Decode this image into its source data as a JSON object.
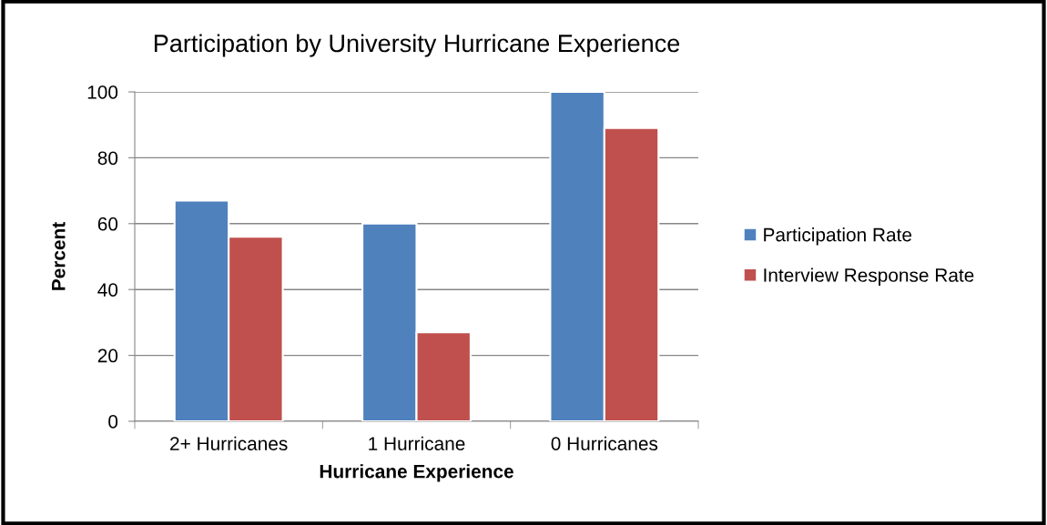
{
  "chart_data": {
    "type": "bar",
    "title": "Participation by University Hurricane Experience",
    "xlabel": "Hurricane Experience",
    "ylabel": "Percent",
    "categories": [
      "2+ Hurricanes",
      "1 Hurricane",
      "0 Hurricanes"
    ],
    "series": [
      {
        "name": "Participation Rate",
        "color": "#4f81bd",
        "values": [
          67,
          60,
          100
        ]
      },
      {
        "name": "Interview Response Rate",
        "color": "#c0504d",
        "values": [
          56,
          27,
          89
        ]
      }
    ],
    "ylim": [
      0,
      100
    ],
    "yticks": [
      0,
      20,
      40,
      60,
      80,
      100
    ],
    "grid": "y",
    "legend": "right"
  }
}
